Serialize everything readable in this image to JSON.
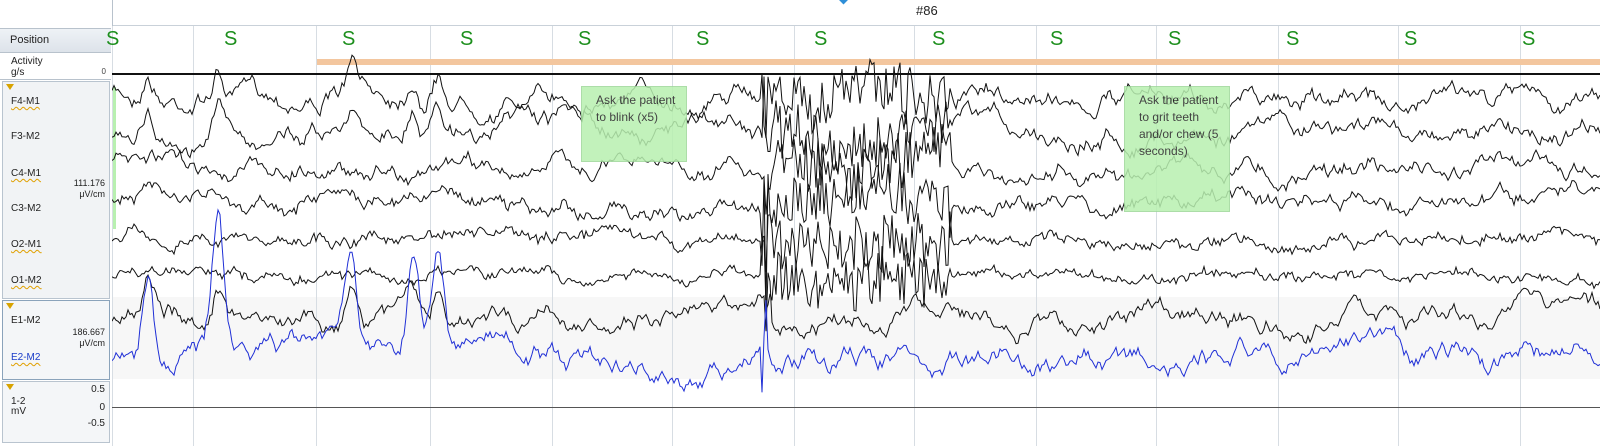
{
  "toolbar": {
    "epoch_label": "#86"
  },
  "left_panel": {
    "position_label": "Position",
    "activity": {
      "label": "Activity",
      "unit": "g/s",
      "zero": "0"
    },
    "eeg_group": {
      "channels": [
        "F4-M1",
        "F3-M2",
        "C4-M1",
        "C3-M2",
        "O2-M1",
        "O1-M2"
      ],
      "scale_value": "111.176",
      "scale_unit": "μV/cm"
    },
    "eog_group": {
      "channels": [
        "E1-M2",
        "E2-M2"
      ],
      "scale_value": "186.667",
      "scale_unit": "μV/cm"
    },
    "position_group": {
      "label": "1-2",
      "unit": "mV",
      "ticks": [
        "0.5",
        "0",
        "-0.5"
      ]
    }
  },
  "plot": {
    "stage_markers": [
      "S",
      "S",
      "S",
      "S",
      "S",
      "S",
      "S",
      "S",
      "S",
      "S",
      "S",
      "S",
      "S"
    ],
    "annotations": [
      {
        "text": "Ask the patient to blink (x5)"
      },
      {
        "text": "Ask the patient to grit teeth and/or chew (5 seconds)"
      }
    ]
  },
  "colors": {
    "eeg_trace": "#111111",
    "e2_trace": "#1f2fd6",
    "stage_marker": "#1d8f1d",
    "annotation_bg": "#b8f0b0",
    "activity_bar": "#f3c69e"
  }
}
